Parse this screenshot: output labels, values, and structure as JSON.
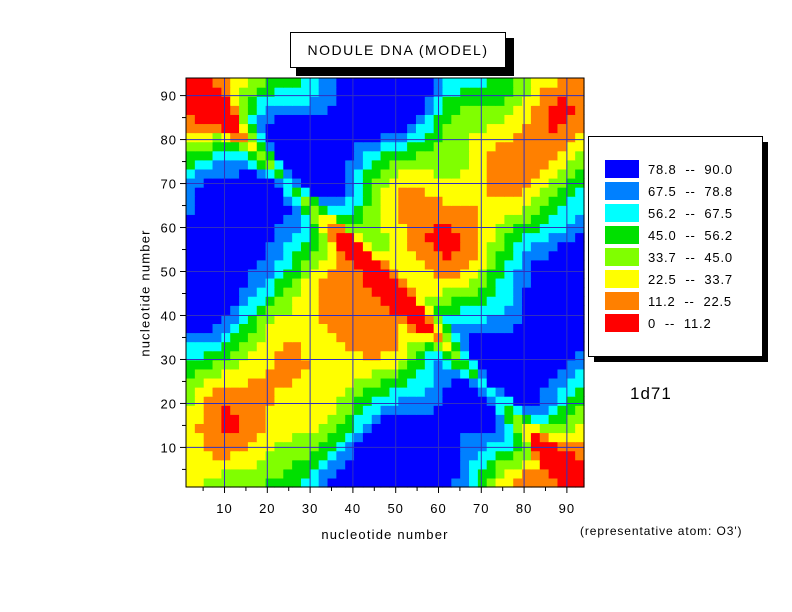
{
  "chart_data": {
    "type": "heatmap",
    "subtype": "filled-contour distance map",
    "title": "NODULE DNA (MODEL)",
    "xlabel": "nucleotide number",
    "ylabel": "nucleotide number",
    "xlim": [
      1,
      94
    ],
    "ylim": [
      1,
      94
    ],
    "xticks": [
      10,
      20,
      30,
      40,
      50,
      60,
      70,
      80,
      90
    ],
    "yticks": [
      10,
      20,
      30,
      40,
      50,
      60,
      70,
      80,
      90
    ],
    "grid": true,
    "legend_position": "right",
    "levels": [
      {
        "label": "78.8  --  90.0",
        "min": 78.8,
        "max": 90.0,
        "color": "#0000ff"
      },
      {
        "label": "67.5  --  78.8",
        "min": 67.5,
        "max": 78.8,
        "color": "#0080ff"
      },
      {
        "label": "56.2  --  67.5",
        "min": 56.2,
        "max": 67.5,
        "color": "#00ffff"
      },
      {
        "label": "45.0  --  56.2",
        "min": 45.0,
        "max": 56.2,
        "color": "#00e000"
      },
      {
        "label": "33.7  --  45.0",
        "min": 33.7,
        "max": 45.0,
        "color": "#80ff00"
      },
      {
        "label": "22.5  --  33.7",
        "min": 22.5,
        "max": 33.7,
        "color": "#ffff00"
      },
      {
        "label": "11.2  --  22.5",
        "min": 11.2,
        "max": 22.5,
        "color": "#ff8000"
      },
      {
        "label": "0  --  11.2",
        "min": 0,
        "max": 11.2,
        "color": "#ff0000"
      }
    ],
    "grid_color": "#3030c0",
    "pdb_id": "1d71",
    "note": "(representative atom: O3')"
  }
}
